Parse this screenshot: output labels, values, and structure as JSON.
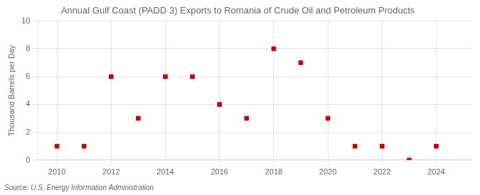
{
  "chart_data": {
    "type": "scatter",
    "title": "Annual Gulf Coast (PADD 3) Exports to Romania of Crude Oil and Petroleum Products",
    "ylabel": "Thousand Barrels per Day",
    "annotation": "Source: U.S. Energy Information Administration",
    "x": [
      2010,
      2011,
      2012,
      2013,
      2014,
      2015,
      2016,
      2017,
      2018,
      2019,
      2020,
      2021,
      2022,
      2023,
      2024
    ],
    "values": [
      1,
      1,
      6,
      3,
      6,
      6,
      4,
      3,
      8,
      7,
      3,
      1,
      1,
      0,
      1
    ],
    "color": "#cc0000",
    "marker": "square",
    "xlim": [
      2009.3,
      2025.3
    ],
    "xticks": [
      2010,
      2012,
      2014,
      2016,
      2018,
      2020,
      2022,
      2024
    ],
    "ylim": [
      0,
      10
    ],
    "yticks": [
      0,
      2,
      4,
      6,
      8,
      10
    ],
    "grid": true
  }
}
